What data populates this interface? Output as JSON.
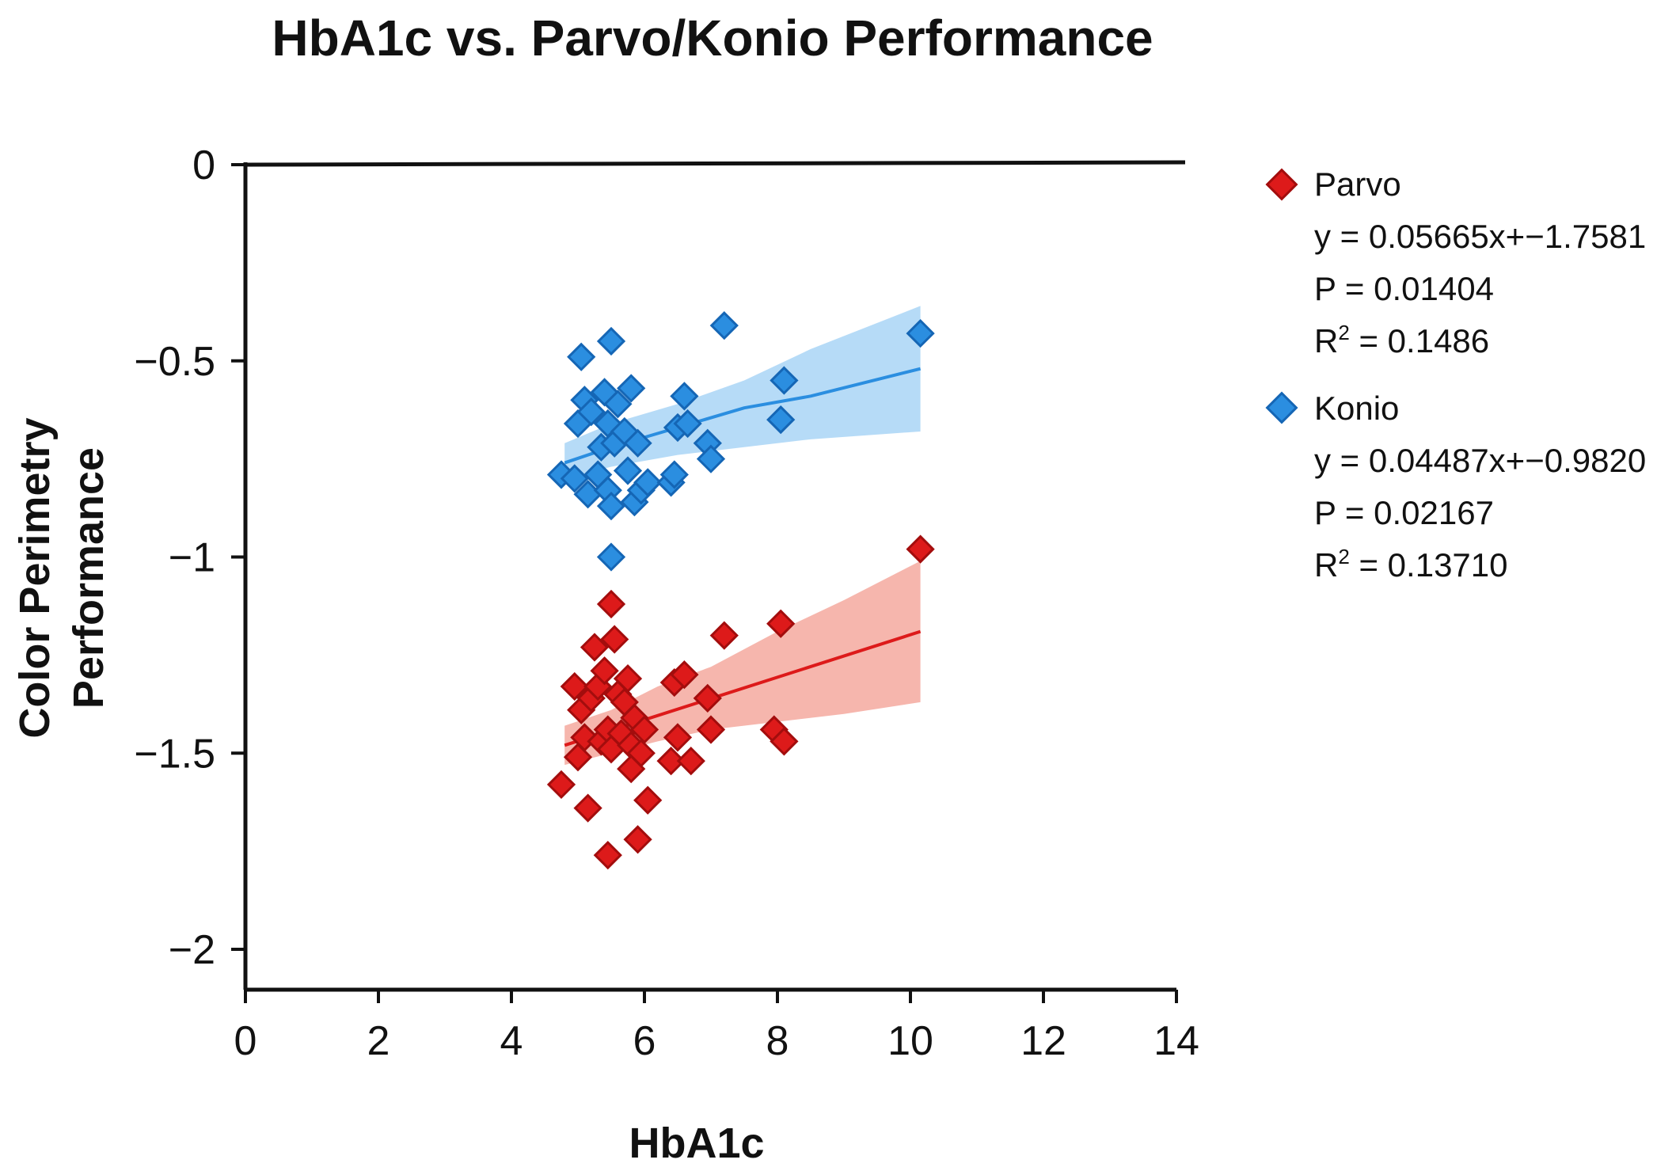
{
  "chart_data": {
    "type": "scatter",
    "title": "HbA1c vs. Parvo/Konio Performance",
    "xlabel": "HbA1c",
    "ylabel_lines": [
      "Color Perimetry",
      "Performance"
    ],
    "xlim": [
      0,
      14
    ],
    "ylim": [
      -2.1,
      0
    ],
    "xticks": [
      0,
      2,
      4,
      6,
      8,
      10,
      12,
      14
    ],
    "yticks": [
      0,
      -0.5,
      -1,
      -1.5,
      -2
    ],
    "xtick_labels": [
      "0",
      "2",
      "4",
      "6",
      "8",
      "10",
      "12",
      "14"
    ],
    "ytick_labels": [
      "0",
      "−0.5",
      "−1",
      "−1.5",
      "−2"
    ],
    "grid": false,
    "legend_position": "right",
    "series": [
      {
        "name": "Parvo",
        "color": "#dd1a1a",
        "edge_color": "#a30d0d",
        "band_color": "#f4a99f",
        "legend": {
          "label": "Parvo",
          "equation": "y = 0.05665x+−1.7581",
          "p": "P = 0.01404",
          "r2_prefix": "R",
          "r2_sup": "2",
          "r2_value": " = 0.1486"
        },
        "points": [
          [
            4.75,
            -1.58
          ],
          [
            4.95,
            -1.33
          ],
          [
            5.0,
            -1.51
          ],
          [
            5.05,
            -1.39
          ],
          [
            5.1,
            -1.46
          ],
          [
            5.15,
            -1.64
          ],
          [
            5.2,
            -1.36
          ],
          [
            5.25,
            -1.23
          ],
          [
            5.3,
            -1.33
          ],
          [
            5.35,
            -1.47
          ],
          [
            5.4,
            -1.29
          ],
          [
            5.45,
            -1.44
          ],
          [
            5.45,
            -1.76
          ],
          [
            5.5,
            -1.12
          ],
          [
            5.5,
            -1.49
          ],
          [
            5.55,
            -1.21
          ],
          [
            5.6,
            -1.35
          ],
          [
            5.65,
            -1.45
          ],
          [
            5.7,
            -1.37
          ],
          [
            5.75,
            -1.31
          ],
          [
            5.8,
            -1.48
          ],
          [
            5.8,
            -1.54
          ],
          [
            5.85,
            -1.41
          ],
          [
            5.9,
            -1.72
          ],
          [
            5.95,
            -1.5
          ],
          [
            6.0,
            -1.44
          ],
          [
            6.05,
            -1.62
          ],
          [
            6.4,
            -1.52
          ],
          [
            6.45,
            -1.32
          ],
          [
            6.5,
            -1.46
          ],
          [
            6.6,
            -1.3
          ],
          [
            6.7,
            -1.52
          ],
          [
            6.95,
            -1.36
          ],
          [
            7.0,
            -1.44
          ],
          [
            7.2,
            -1.2
          ],
          [
            7.95,
            -1.44
          ],
          [
            8.05,
            -1.17
          ],
          [
            8.1,
            -1.47
          ],
          [
            10.15,
            -0.98
          ]
        ],
        "fit_line": {
          "x": [
            4.8,
            10.15
          ],
          "y": [
            -1.48,
            -1.19
          ]
        },
        "band_x": [
          4.8,
          5.5,
          6.2,
          7.0,
          8.0,
          9.0,
          10.15
        ],
        "band_upper": [
          -1.43,
          -1.39,
          -1.33,
          -1.28,
          -1.19,
          -1.11,
          -1.01
        ],
        "band_lower": [
          -1.53,
          -1.5,
          -1.47,
          -1.44,
          -1.42,
          -1.4,
          -1.37
        ]
      },
      {
        "name": "Konio",
        "color": "#2b8ee0",
        "edge_color": "#1566b5",
        "band_color": "#a9d5f6",
        "legend": {
          "label": "Konio",
          "equation": "y = 0.04487x+−0.9820",
          "p": "P = 0.02167",
          "r2_prefix": "R",
          "r2_sup": "2",
          "r2_value": " = 0.13710"
        },
        "points": [
          [
            4.75,
            -0.79
          ],
          [
            4.95,
            -0.8
          ],
          [
            5.0,
            -0.66
          ],
          [
            5.05,
            -0.49
          ],
          [
            5.1,
            -0.6
          ],
          [
            5.15,
            -0.84
          ],
          [
            5.2,
            -0.63
          ],
          [
            5.3,
            -0.79
          ],
          [
            5.35,
            -0.72
          ],
          [
            5.4,
            -0.58
          ],
          [
            5.45,
            -0.66
          ],
          [
            5.45,
            -0.83
          ],
          [
            5.5,
            -0.45
          ],
          [
            5.5,
            -0.87
          ],
          [
            5.5,
            -1.0
          ],
          [
            5.55,
            -0.71
          ],
          [
            5.6,
            -0.61
          ],
          [
            5.7,
            -0.68
          ],
          [
            5.75,
            -0.78
          ],
          [
            5.8,
            -0.57
          ],
          [
            5.85,
            -0.86
          ],
          [
            5.9,
            -0.71
          ],
          [
            5.95,
            -0.83
          ],
          [
            6.05,
            -0.81
          ],
          [
            6.4,
            -0.81
          ],
          [
            6.45,
            -0.79
          ],
          [
            6.5,
            -0.67
          ],
          [
            6.6,
            -0.59
          ],
          [
            6.65,
            -0.66
          ],
          [
            6.95,
            -0.71
          ],
          [
            7.0,
            -0.75
          ],
          [
            7.2,
            -0.41
          ],
          [
            8.05,
            -0.65
          ],
          [
            8.1,
            -0.55
          ],
          [
            10.15,
            -0.43
          ]
        ],
        "fit_line": {
          "x": [
            4.8,
            5.5,
            6.5,
            7.5,
            8.5,
            10.15
          ],
          "y": [
            -0.76,
            -0.72,
            -0.67,
            -0.62,
            -0.59,
            -0.52
          ]
        },
        "band_x": [
          4.8,
          5.5,
          6.5,
          7.5,
          8.5,
          10.15
        ],
        "band_upper": [
          -0.71,
          -0.66,
          -0.61,
          -0.55,
          -0.47,
          -0.36
        ],
        "band_lower": [
          -0.8,
          -0.77,
          -0.74,
          -0.72,
          -0.7,
          -0.68
        ]
      }
    ]
  }
}
